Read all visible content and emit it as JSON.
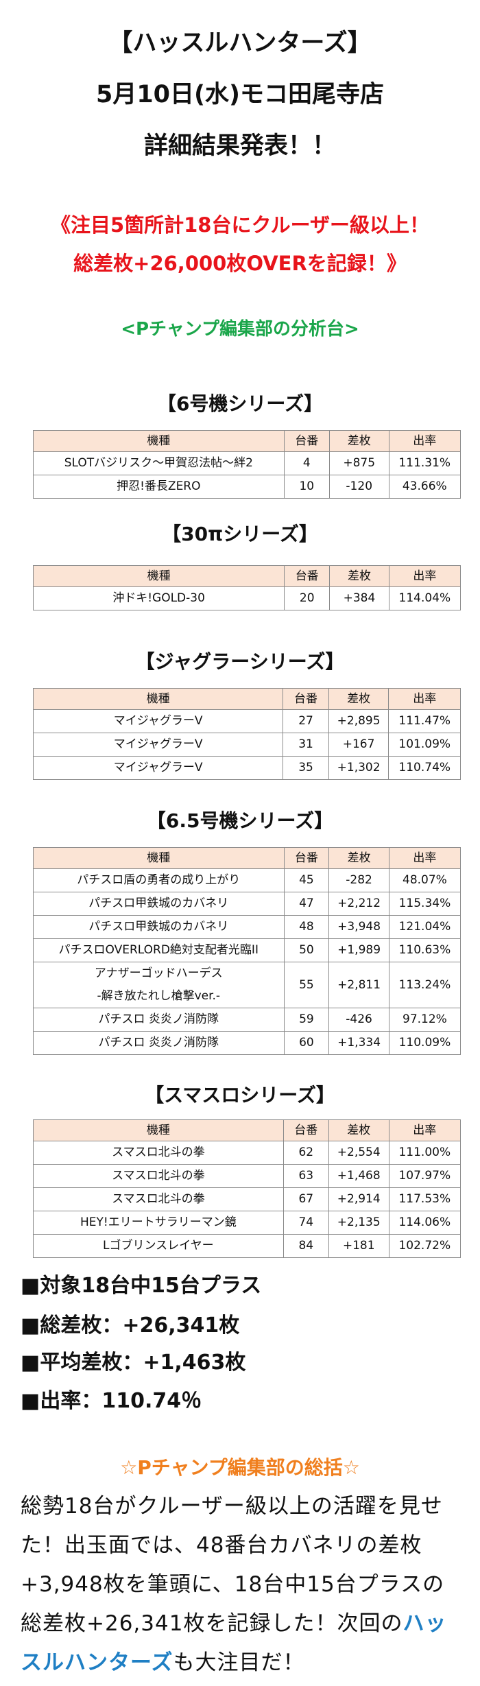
{
  "header": {
    "lines": [
      "【ハッスルハンターズ】",
      "5月10日(水)モコ田尾寺店",
      "詳細結果発表！！"
    ]
  },
  "highlight": {
    "lines": [
      "《注目5箇所計18台にクルーザー級以上！",
      "総差枚+26,000枚OVERを記録！》"
    ]
  },
  "subtitle": "<Pチャンプ編集部の分析台>",
  "columns": [
    "機種",
    "台番",
    "差枚",
    "出率"
  ],
  "sections": [
    {
      "title": "【6号機シリーズ】",
      "rows": [
        [
          "SLOTバジリスク～甲賀忍法帖～絆2",
          "4",
          "+875",
          "111.31%"
        ],
        [
          "押忍!番長ZERO",
          "10",
          "-120",
          "43.66%"
        ]
      ]
    },
    {
      "title": "【30πシリーズ】",
      "rows": [
        [
          "沖ドキ!GOLD-30",
          "20",
          "+384",
          "114.04%"
        ]
      ]
    },
    {
      "title": "【ジャグラーシリーズ】",
      "rows": [
        [
          "マイジャグラーV",
          "27",
          "+2,895",
          "111.47%"
        ],
        [
          "マイジャグラーV",
          "31",
          "+167",
          "101.09%"
        ],
        [
          "マイジャグラーV",
          "35",
          "+1,302",
          "110.74%"
        ]
      ]
    },
    {
      "title": "【6.5号機シリーズ】",
      "rows": [
        [
          "パチスロ盾の勇者の成り上がり",
          "45",
          "-282",
          "48.07%"
        ],
        [
          "パチスロ甲鉄城のカバネリ",
          "47",
          "+2,212",
          "115.34%"
        ],
        [
          "パチスロ甲鉄城のカバネリ",
          "48",
          "+3,948",
          "121.04%"
        ],
        [
          "パチスロOVERLORD絶対支配者光臨II",
          "50",
          "+1,989",
          "110.63%"
        ],
        [
          "アナザーゴッドハーデス\n-解き放たれし槍撃ver.-",
          "55",
          "+2,811",
          "113.24%"
        ],
        [
          "パチスロ 炎炎ノ消防隊",
          "59",
          "-426",
          "97.12%"
        ],
        [
          "パチスロ 炎炎ノ消防隊",
          "60",
          "+1,334",
          "110.09%"
        ]
      ]
    },
    {
      "title": "【スマスロシリーズ】",
      "rows": [
        [
          "スマスロ北斗の拳",
          "62",
          "+2,554",
          "111.00%"
        ],
        [
          "スマスロ北斗の拳",
          "63",
          "+1,468",
          "107.97%"
        ],
        [
          "スマスロ北斗の拳",
          "67",
          "+2,914",
          "117.53%"
        ],
        [
          "HEY!エリートサラリーマン鏡",
          "74",
          "+2,135",
          "114.06%"
        ],
        [
          "Lゴブリンスレイヤー",
          "84",
          "+181",
          "102.72%"
        ]
      ]
    }
  ],
  "summary": [
    "■対象18台中15台プラス",
    "■総差枚：+26,341枚",
    "■平均差枚：+1,463枚",
    "■出率：110.74％"
  ],
  "conclusion": {
    "title": "☆Pチャンプ編集部の総括☆",
    "before": "総勢18台がクルーザー級以上の活躍を見せた！出玉面では、48番台カバネリの差枚+3,948枚を筆頭に、18台中15台プラスの総差枚+26,341枚を記録した！次回の",
    "highlight": "ハッスルハンターズ",
    "after": "も大注目だ！"
  }
}
